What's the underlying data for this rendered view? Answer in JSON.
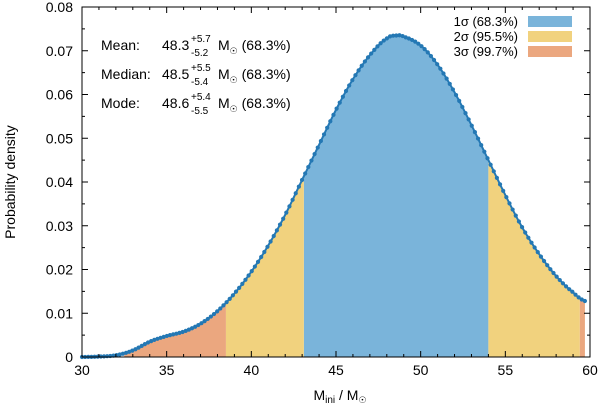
{
  "chart_data": {
    "type": "area",
    "xlabel_main": "M",
    "xlabel_sub": "ini",
    "xlabel_sep": " / M",
    "xlabel_sun": "☉",
    "ylabel": "Probability density",
    "xlim": [
      30,
      60
    ],
    "ylim": [
      0,
      0.08
    ],
    "xticks": [
      "30",
      "35",
      "40",
      "45",
      "50",
      "55",
      "60"
    ],
    "yticks": [
      "0",
      "0.01",
      "0.02",
      "0.03",
      "0.04",
      "0.05",
      "0.06",
      "0.07",
      "0.08"
    ],
    "grid": false,
    "legend_position": "top-right",
    "regions": [
      {
        "name": "1σ (68.3%)",
        "range": [
          43.1,
          54.0
        ],
        "color": "#7ab4da"
      },
      {
        "name": "2σ (95.5%)",
        "range": [
          38.5,
          43.1
        ],
        "color": "#f1d27e",
        "range2": [
          54.0,
          59.4
        ]
      },
      {
        "name": "3σ (99.7%)",
        "range": [
          32.5,
          38.5
        ],
        "color": "#eba77f",
        "range2": [
          59.4,
          59.7
        ]
      }
    ],
    "curve_color": "#2478b4",
    "curve": [
      [
        30.0,
        0.0
      ],
      [
        31.0,
        0.0001
      ],
      [
        32.0,
        0.0004
      ],
      [
        33.0,
        0.0015
      ],
      [
        34.0,
        0.0035
      ],
      [
        35.0,
        0.0048
      ],
      [
        36.0,
        0.0058
      ],
      [
        37.0,
        0.0076
      ],
      [
        38.0,
        0.0105
      ],
      [
        39.0,
        0.0145
      ],
      [
        40.0,
        0.0195
      ],
      [
        41.0,
        0.0255
      ],
      [
        42.0,
        0.0325
      ],
      [
        43.0,
        0.0405
      ],
      [
        44.0,
        0.0485
      ],
      [
        45.0,
        0.0565
      ],
      [
        46.0,
        0.0635
      ],
      [
        47.0,
        0.069
      ],
      [
        48.0,
        0.0728
      ],
      [
        48.6,
        0.0735
      ],
      [
        49.0,
        0.0732
      ],
      [
        50.0,
        0.0712
      ],
      [
        51.0,
        0.0668
      ],
      [
        52.0,
        0.0605
      ],
      [
        53.0,
        0.053
      ],
      [
        54.0,
        0.045
      ],
      [
        55.0,
        0.037
      ],
      [
        56.0,
        0.0296
      ],
      [
        57.0,
        0.0235
      ],
      [
        58.0,
        0.0185
      ],
      [
        59.0,
        0.0148
      ],
      [
        59.7,
        0.0128
      ]
    ],
    "annotations": [
      {
        "label": "Mean:",
        "value": "48.3",
        "sup": "+5.7",
        "sub": "-5.2",
        "unit": "M",
        "sun": "☉",
        "conf": "(68.3%)"
      },
      {
        "label": "Median:",
        "value": "48.5",
        "sup": "+5.5",
        "sub": "-5.4",
        "unit": "M",
        "sun": "☉",
        "conf": "(68.3%)"
      },
      {
        "label": "Mode:",
        "value": "48.6",
        "sup": "+5.4",
        "sub": "-5.5",
        "unit": "M",
        "sun": "☉",
        "conf": "(68.3%)"
      }
    ]
  }
}
